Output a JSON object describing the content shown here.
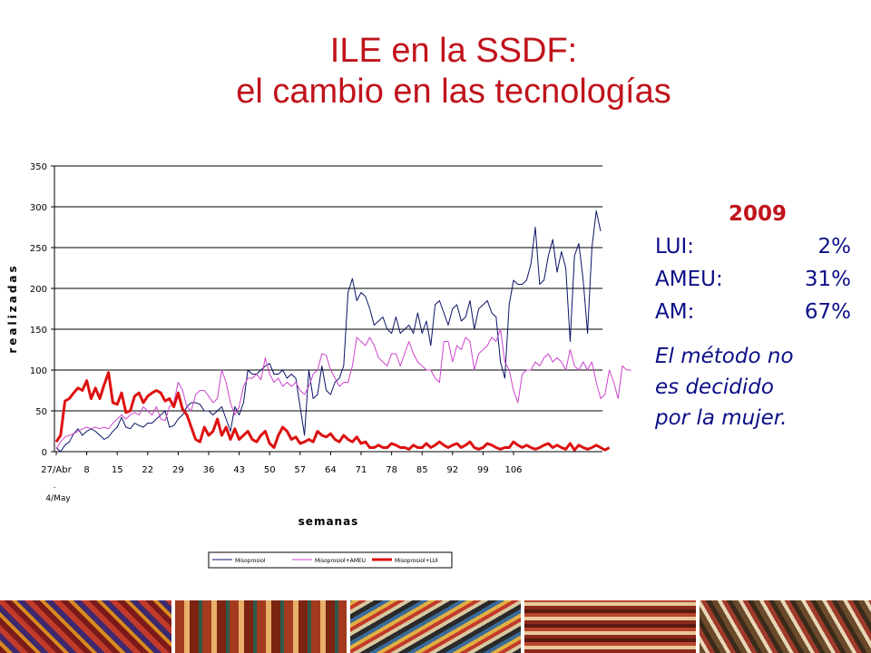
{
  "title": {
    "line1": "ILE en la SSDF:",
    "line2": "el cambio en las tecnologías"
  },
  "stats": {
    "year": "2009",
    "rows": [
      {
        "label": "LUI:",
        "value": "2%"
      },
      {
        "label": "AMEU:",
        "value": "31%"
      },
      {
        "label": "AM:",
        "value": "67%"
      }
    ],
    "note": [
      "El método no",
      "es decidido",
      "por la mujer."
    ]
  },
  "colors": {
    "title": "#c0131b",
    "text": "#0b0f86",
    "misoprosiol": "#0b1466",
    "ameu": "#cc44cc",
    "lui": "#dd1111"
  },
  "chart_data": {
    "type": "line",
    "ylabel": "realizadas",
    "xlabel": "semanas",
    "ylim": [
      0,
      350
    ],
    "yticks": [
      0,
      50,
      100,
      150,
      200,
      250,
      300,
      350
    ],
    "x_tick_labels": [
      "27/Abr",
      "8",
      "15",
      "22",
      "29",
      "36",
      "43",
      "50",
      "57",
      "64",
      "71",
      "78",
      "85",
      "92",
      "99",
      "106"
    ],
    "x_tick_sublabel": "4/May",
    "grid": "horizontal",
    "legend_position": "bottom",
    "series": [
      {
        "name": "Misoprosiol",
        "color": "#0b1466",
        "values": [
          5,
          0,
          8,
          12,
          22,
          28,
          20,
          25,
          28,
          25,
          20,
          15,
          18,
          25,
          30,
          42,
          30,
          28,
          35,
          32,
          30,
          35,
          35,
          40,
          45,
          50,
          30,
          32,
          40,
          45,
          55,
          60,
          60,
          58,
          50,
          50,
          45,
          50,
          55,
          40,
          25,
          55,
          45,
          60,
          100,
          95,
          95,
          100,
          105,
          108,
          95,
          95,
          100,
          90,
          95,
          90,
          55,
          20,
          100,
          65,
          70,
          105,
          75,
          70,
          85,
          90,
          105,
          195,
          212,
          185,
          195,
          190,
          175,
          155,
          160,
          165,
          150,
          145,
          165,
          145,
          150,
          155,
          145,
          170,
          145,
          160,
          130,
          180,
          185,
          170,
          155,
          175,
          180,
          160,
          165,
          185,
          150,
          175,
          180,
          185,
          170,
          165,
          110,
          90,
          180,
          210,
          205,
          205,
          210,
          230,
          275,
          205,
          210,
          240,
          260,
          220,
          245,
          225,
          135,
          240,
          255,
          210,
          145,
          250,
          295,
          270
        ]
      },
      {
        "name": "Misoprosiol+AMEU",
        "color": "#cc44cc",
        "values": [
          3,
          12,
          18,
          20,
          22,
          25,
          28,
          30,
          28,
          30,
          28,
          30,
          28,
          35,
          40,
          45,
          40,
          45,
          48,
          45,
          55,
          50,
          45,
          55,
          40,
          38,
          55,
          60,
          85,
          75,
          55,
          50,
          70,
          75,
          75,
          68,
          60,
          65,
          100,
          85,
          60,
          45,
          55,
          80,
          90,
          90,
          95,
          88,
          115,
          95,
          85,
          90,
          80,
          85,
          80,
          85,
          75,
          70,
          80,
          95,
          100,
          120,
          118,
          100,
          90,
          80,
          85,
          85,
          105,
          140,
          135,
          130,
          140,
          130,
          115,
          110,
          105,
          120,
          120,
          105,
          120,
          135,
          120,
          110,
          105,
          100,
          100,
          90,
          85,
          135,
          135,
          110,
          130,
          125,
          140,
          135,
          100,
          120,
          125,
          130,
          140,
          135,
          150,
          110,
          100,
          75,
          60,
          95,
          100,
          100,
          110,
          105,
          115,
          120,
          110,
          115,
          110,
          100,
          125,
          105,
          100,
          110,
          100,
          110,
          85,
          65,
          70,
          100,
          85,
          65,
          105,
          100,
          100
        ]
      },
      {
        "name": "Misoprosiol+LUI",
        "color": "#dd1111",
        "values": [
          12,
          20,
          62,
          65,
          72,
          78,
          75,
          87,
          65,
          78,
          65,
          82,
          97,
          60,
          58,
          72,
          48,
          50,
          68,
          72,
          60,
          68,
          72,
          75,
          72,
          62,
          65,
          55,
          72,
          52,
          45,
          30,
          15,
          12,
          30,
          20,
          25,
          40,
          20,
          30,
          15,
          28,
          15,
          20,
          25,
          15,
          12,
          20,
          25,
          10,
          5,
          20,
          30,
          25,
          15,
          18,
          10,
          12,
          15,
          12,
          25,
          20,
          18,
          22,
          15,
          12,
          20,
          15,
          12,
          18,
          10,
          12,
          5,
          5,
          8,
          5,
          5,
          10,
          8,
          5,
          5,
          3,
          8,
          5,
          5,
          10,
          5,
          8,
          12,
          8,
          5,
          8,
          10,
          5,
          8,
          12,
          5,
          3,
          5,
          10,
          8,
          5,
          3,
          5,
          5,
          12,
          8,
          5,
          8,
          5,
          3,
          5,
          8,
          10,
          5,
          8,
          5,
          3,
          10,
          2,
          8,
          5,
          3,
          5,
          8,
          5,
          2,
          5
        ]
      }
    ]
  }
}
